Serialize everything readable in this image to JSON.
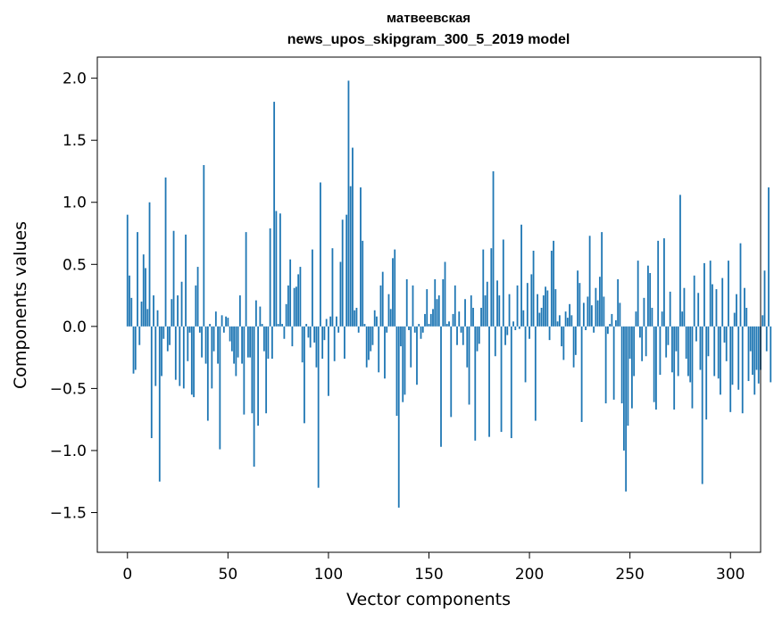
{
  "chart_data": {
    "type": "bar",
    "title_line1": "матвеевская",
    "title_line2": "news_upos_skipgram_300_5_2019 model",
    "xlabel": "Vector components",
    "ylabel": "Components values",
    "xlim": [
      -15,
      315
    ],
    "ylim": [
      -1.82,
      2.17
    ],
    "xticks": [
      0,
      50,
      100,
      150,
      200,
      250,
      300
    ],
    "xtick_labels": [
      "0",
      "50",
      "100",
      "150",
      "200",
      "250",
      "300"
    ],
    "yticks": [
      -1.5,
      -1.0,
      -0.5,
      0.0,
      0.5,
      1.0,
      1.5,
      2.0
    ],
    "ytick_labels": [
      "−1.5",
      "−1.0",
      "−0.5",
      "0.0",
      "0.5",
      "1.0",
      "1.5",
      "2.0"
    ],
    "bar_color": "#1f77b4",
    "grid": false,
    "values": [
      0.9,
      0.41,
      0.23,
      -0.38,
      -0.35,
      0.76,
      -0.15,
      0.2,
      0.58,
      0.47,
      0.14,
      1.0,
      -0.9,
      0.25,
      -0.48,
      0.13,
      -1.25,
      -0.4,
      -0.1,
      1.2,
      -0.2,
      -0.15,
      0.22,
      0.77,
      -0.43,
      0.25,
      -0.48,
      0.36,
      -0.5,
      0.74,
      -0.28,
      -0.05,
      -0.55,
      -0.57,
      0.33,
      0.48,
      -0.05,
      -0.25,
      1.3,
      -0.3,
      -0.76,
      0.02,
      -0.5,
      -0.2,
      0.12,
      -0.3,
      -0.99,
      0.09,
      -0.05,
      0.08,
      0.07,
      -0.12,
      -0.2,
      -0.3,
      -0.4,
      -0.25,
      0.25,
      -0.3,
      -0.71,
      0.76,
      -0.25,
      -0.25,
      -0.7,
      -1.13,
      0.21,
      -0.8,
      0.16,
      0.02,
      -0.2,
      -0.7,
      -0.26,
      0.79,
      -0.26,
      1.81,
      0.93,
      0.02,
      0.91,
      0.02,
      -0.1,
      0.18,
      0.33,
      0.54,
      -0.16,
      0.31,
      0.32,
      0.42,
      0.48,
      -0.29,
      -0.78,
      0.02,
      -0.09,
      -0.17,
      0.62,
      -0.13,
      -0.33,
      -1.3,
      1.16,
      -0.26,
      -0.11,
      0.06,
      -0.56,
      0.08,
      0.63,
      -0.28,
      0.08,
      -0.05,
      0.52,
      0.86,
      -0.26,
      0.9,
      1.98,
      1.13,
      1.44,
      0.13,
      0.15,
      -0.05,
      1.12,
      0.69,
      0.02,
      -0.33,
      -0.27,
      -0.2,
      -0.15,
      0.13,
      0.08,
      -0.37,
      0.33,
      0.44,
      -0.42,
      -0.05,
      0.26,
      0.14,
      0.55,
      0.62,
      -0.72,
      -1.46,
      -0.16,
      -0.61,
      -0.55,
      0.38,
      -0.03,
      -0.33,
      0.33,
      -0.05,
      -0.47,
      0.02,
      -0.1,
      -0.05,
      0.1,
      0.3,
      0.02,
      0.1,
      0.14,
      0.38,
      0.22,
      0.25,
      -0.97,
      0.38,
      0.52,
      0.02,
      0.04,
      -0.73,
      0.1,
      0.33,
      -0.15,
      0.12,
      -0.05,
      -0.15,
      0.22,
      -0.33,
      -0.63,
      0.25,
      0.15,
      -0.92,
      -0.2,
      -0.14,
      0.15,
      0.62,
      0.25,
      0.36,
      -0.89,
      0.63,
      1.25,
      -0.24,
      0.37,
      0.25,
      -0.85,
      0.7,
      -0.15,
      -0.07,
      0.26,
      -0.9,
      0.04,
      -0.03,
      0.33,
      -0.02,
      0.82,
      0.13,
      -0.45,
      0.35,
      -0.1,
      0.42,
      0.61,
      -0.76,
      0.26,
      0.11,
      0.15,
      0.25,
      0.32,
      0.29,
      -0.11,
      0.61,
      0.69,
      0.3,
      0.04,
      0.09,
      -0.16,
      -0.27,
      0.12,
      0.07,
      0.18,
      0.09,
      -0.33,
      -0.23,
      0.45,
      0.35,
      -0.77,
      0.19,
      -0.03,
      0.24,
      0.73,
      0.17,
      -0.05,
      0.31,
      0.21,
      0.4,
      0.76,
      0.24,
      -0.62,
      -0.06,
      0.02,
      0.1,
      -0.59,
      0.05,
      0.38,
      0.19,
      -0.62,
      -1.0,
      -1.33,
      -0.8,
      -0.26,
      -0.66,
      -0.4,
      0.12,
      0.53,
      -0.09,
      -0.28,
      0.23,
      -0.24,
      0.49,
      0.43,
      0.15,
      -0.61,
      -0.67,
      0.69,
      -0.39,
      0.12,
      0.71,
      -0.25,
      -0.15,
      0.28,
      -0.37,
      -0.67,
      -0.2,
      -0.4,
      1.06,
      0.12,
      0.31,
      -0.26,
      -0.4,
      -0.45,
      -0.66,
      0.41,
      -0.12,
      0.27,
      -0.35,
      -1.27,
      0.51,
      -0.75,
      -0.24,
      0.53,
      0.34,
      -0.4,
      0.3,
      -0.42,
      -0.55,
      0.39,
      -0.13,
      -0.28,
      0.53,
      -0.69,
      -0.47,
      0.11,
      0.26,
      -0.51,
      0.67,
      -0.7,
      0.31,
      0.15,
      -0.44,
      -0.2,
      -0.39,
      -0.55,
      -0.35,
      -0.46,
      -0.35,
      0.09,
      0.45,
      -0.2,
      1.12,
      -0.45
    ]
  }
}
